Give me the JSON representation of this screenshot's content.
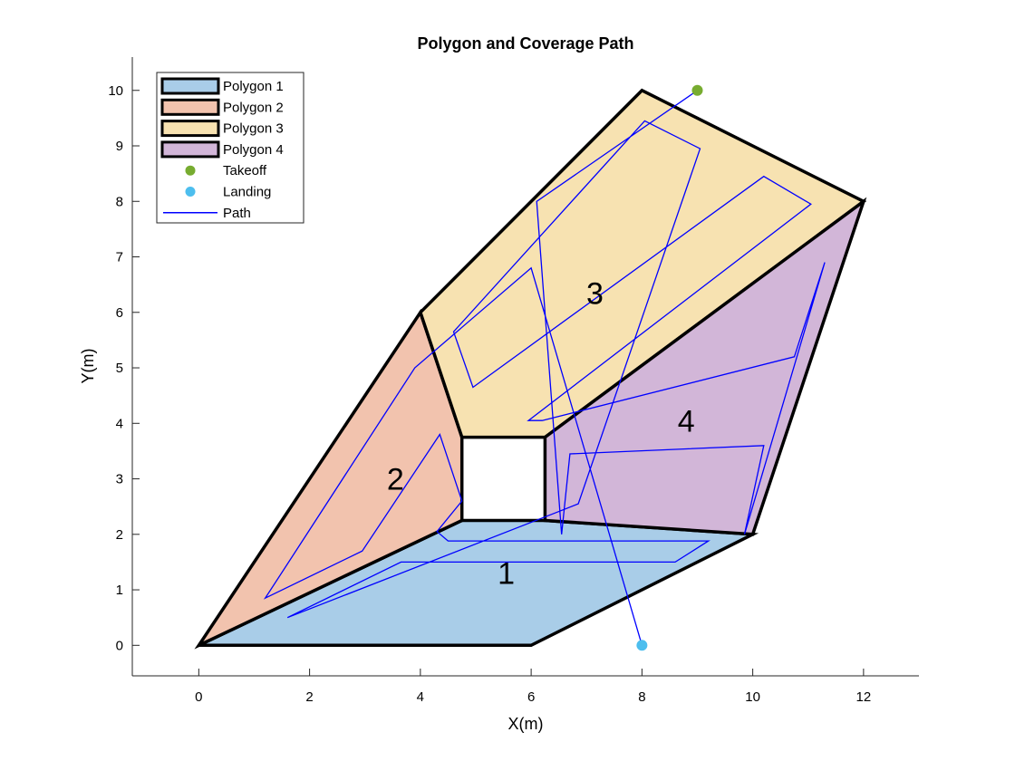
{
  "chart_data": {
    "type": "polygon-coverage",
    "title": "Polygon and Coverage Path",
    "xlabel": "X(m)",
    "ylabel": "Y(m)",
    "xlim": [
      -1.2,
      13
    ],
    "ylim": [
      -0.55,
      10.6
    ],
    "xticks": [
      0,
      2,
      4,
      6,
      8,
      10,
      12
    ],
    "yticks": [
      0,
      1,
      2,
      3,
      4,
      5,
      6,
      7,
      8,
      9,
      10
    ],
    "grid": false,
    "legend_position": "top-left",
    "polygons": [
      {
        "name": "Polygon 1",
        "label": "1",
        "color": "#a9cde8",
        "label_at": [
          5.55,
          1.25
        ],
        "vertices": [
          [
            0,
            0
          ],
          [
            6,
            0
          ],
          [
            10,
            2
          ],
          [
            6.25,
            2.25
          ],
          [
            4.75,
            2.25
          ]
        ]
      },
      {
        "name": "Polygon 2",
        "label": "2",
        "color": "#f2c3ae",
        "label_at": [
          3.55,
          2.95
        ],
        "vertices": [
          [
            0,
            0
          ],
          [
            4,
            6
          ],
          [
            4.75,
            3.75
          ],
          [
            4.75,
            2.25
          ]
        ]
      },
      {
        "name": "Polygon 3",
        "label": "3",
        "color": "#f7e2b1",
        "label_at": [
          7.15,
          6.3
        ],
        "vertices": [
          [
            4,
            6
          ],
          [
            8,
            10
          ],
          [
            12,
            8
          ],
          [
            6.25,
            3.75
          ],
          [
            4.75,
            3.75
          ]
        ]
      },
      {
        "name": "Polygon 4",
        "label": "4",
        "color": "#d2b6d8",
        "label_at": [
          8.8,
          4.0
        ],
        "vertices": [
          [
            6.25,
            3.75
          ],
          [
            12,
            8
          ],
          [
            10,
            2
          ],
          [
            6.25,
            2.25
          ]
        ]
      }
    ],
    "takeoff": {
      "name": "Takeoff",
      "x": 9,
      "y": 10,
      "color": "#77ac30"
    },
    "landing": {
      "name": "Landing",
      "x": 8,
      "y": 0,
      "color": "#4dbeee"
    },
    "path": {
      "name": "Path",
      "color": "#0000ff",
      "x": [
        9,
        6.1,
        6.55,
        6.7,
        10.2,
        9.85,
        11.3,
        10.75,
        6.2,
        5.95,
        11.05,
        10.2,
        4.95,
        4.6,
        8.05,
        9.05,
        6.85,
        6.6,
        1.6,
        3.65,
        8.6,
        9.2,
        4.5,
        4.3,
        4.75,
        4.35,
        2.95,
        1.2,
        3.9,
        6.0,
        8.0
      ],
      "y": [
        10,
        8.0,
        2.0,
        3.45,
        3.6,
        2.0,
        6.9,
        5.2,
        4.05,
        4.05,
        7.95,
        8.45,
        4.65,
        5.65,
        9.45,
        8.95,
        2.55,
        2.45,
        0.5,
        1.5,
        1.5,
        1.88,
        1.88,
        2.05,
        2.6,
        3.8,
        1.7,
        0.85,
        5.0,
        6.8,
        0
      ]
    }
  },
  "legend": {
    "items": [
      {
        "label": "Polygon 1",
        "kind": "patch",
        "color": "#a9cde8"
      },
      {
        "label": "Polygon 2",
        "kind": "patch",
        "color": "#f2c3ae"
      },
      {
        "label": "Polygon 3",
        "kind": "patch",
        "color": "#f7e2b1"
      },
      {
        "label": "Polygon 4",
        "kind": "patch",
        "color": "#d2b6d8"
      },
      {
        "label": "Takeoff",
        "kind": "marker",
        "color": "#77ac30"
      },
      {
        "label": "Landing",
        "kind": "marker",
        "color": "#4dbeee"
      },
      {
        "label": "Path",
        "kind": "line",
        "color": "#0000ff"
      }
    ]
  }
}
